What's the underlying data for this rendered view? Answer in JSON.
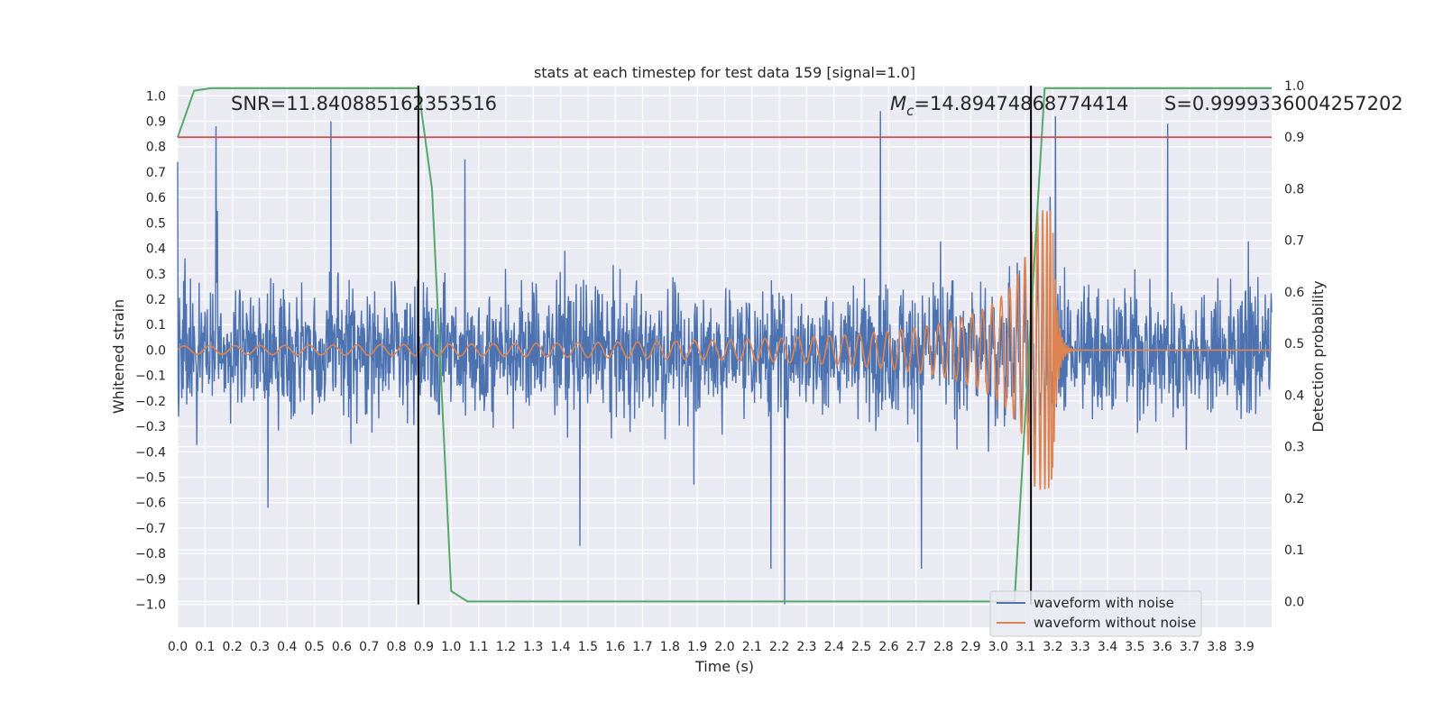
{
  "chart_data": {
    "type": "line",
    "title": "stats at each timestep for test data 159 [signal=1.0]",
    "xlabel": "Time (s)",
    "ylabel": "Whitened strain",
    "ylabel_right": "Detection probability",
    "xlim": [
      0.0,
      4.0
    ],
    "ylim": [
      -1.09,
      1.04
    ],
    "ylim_right": [
      -0.05,
      1.0
    ],
    "xticks": [
      "0.0",
      "0.1",
      "0.2",
      "0.3",
      "0.4",
      "0.5",
      "0.6",
      "0.7",
      "0.8",
      "0.9",
      "1.0",
      "1.1",
      "1.2",
      "1.3",
      "1.4",
      "1.5",
      "1.6",
      "1.7",
      "1.8",
      "1.9",
      "2.0",
      "2.1",
      "2.2",
      "2.3",
      "2.4",
      "2.5",
      "2.6",
      "2.7",
      "2.8",
      "2.9",
      "3.0",
      "3.1",
      "3.2",
      "3.3",
      "3.4",
      "3.5",
      "3.6",
      "3.7",
      "3.8",
      "3.9"
    ],
    "yticks": [
      "1.0",
      "0.9",
      "0.8",
      "0.7",
      "0.6",
      "0.5",
      "0.4",
      "0.3",
      "0.2",
      "0.1",
      "0.0",
      "−0.1",
      "−0.2",
      "−0.3",
      "−0.4",
      "−0.5",
      "−0.6",
      "−0.7",
      "−0.8",
      "−0.9",
      "−1.0"
    ],
    "yticks_right": [
      "1.0",
      "0.9",
      "0.8",
      "0.7",
      "0.6",
      "0.5",
      "0.4",
      "0.3",
      "0.2",
      "0.1",
      "0.0"
    ],
    "grid": true,
    "legend_position": "lower-right",
    "series": [
      {
        "name": "waveform with noise",
        "color": "#4c72b0",
        "axis": "left",
        "description": "whitened noisy strain, amplitude ~ +/-0.5 with spikes to +/-1.0"
      },
      {
        "name": "waveform without noise",
        "color": "#dd8452",
        "axis": "left",
        "description": "chirp signal, amplitude ~0.02 growing to ~0.55 near merger at ~3.2 s, then ringdown"
      },
      {
        "name": "",
        "color": "#55a868",
        "axis": "right",
        "x": [
          0.0,
          0.06,
          0.12,
          0.88,
          0.93,
          1.0,
          1.06,
          3.06,
          3.12,
          3.17,
          3.5,
          4.0
        ],
        "y": [
          0.9,
          0.99,
          0.995,
          0.995,
          0.8,
          0.02,
          0.0,
          0.0,
          0.55,
          0.995,
          0.995,
          0.995
        ]
      }
    ],
    "threshold_line": {
      "axis": "right",
      "y": 0.9,
      "color": "#c44e52"
    },
    "vertical_lines": [
      {
        "x": 0.88,
        "color": "#000000"
      },
      {
        "x": 3.12,
        "color": "#000000"
      }
    ],
    "annotations": {
      "snr": "SNR=11.840885162353516",
      "mc_symbol": "M",
      "mc_subscript": "c",
      "mc_value": "=14.89474868774414",
      "s": "S=0.9999336004257202"
    }
  }
}
